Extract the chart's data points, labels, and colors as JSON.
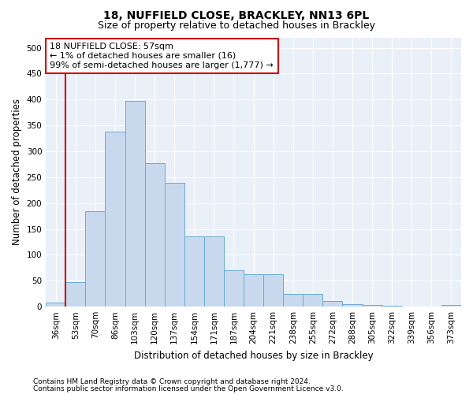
{
  "title1": "18, NUFFIELD CLOSE, BRACKLEY, NN13 6PL",
  "title2": "Size of property relative to detached houses in Brackley",
  "xlabel": "Distribution of detached houses by size in Brackley",
  "ylabel": "Number of detached properties",
  "categories": [
    "36sqm",
    "53sqm",
    "70sqm",
    "86sqm",
    "103sqm",
    "120sqm",
    "137sqm",
    "154sqm",
    "171sqm",
    "187sqm",
    "204sqm",
    "221sqm",
    "238sqm",
    "255sqm",
    "272sqm",
    "288sqm",
    "305sqm",
    "322sqm",
    "339sqm",
    "356sqm",
    "373sqm"
  ],
  "bar_heights": [
    8,
    47,
    184,
    338,
    397,
    277,
    239,
    135,
    135,
    70,
    62,
    62,
    25,
    25,
    11,
    5,
    3,
    2,
    1,
    1,
    3
  ],
  "bar_color": "#c8d9ee",
  "bar_edge_color": "#6aaad4",
  "vline_color": "#cc0000",
  "annotation_text": "18 NUFFIELD CLOSE: 57sqm\n← 1% of detached houses are smaller (16)\n99% of semi-detached houses are larger (1,777) →",
  "annotation_box_color": "#ffffff",
  "annotation_box_edge_color": "#cc0000",
  "footer1": "Contains HM Land Registry data © Crown copyright and database right 2024.",
  "footer2": "Contains public sector information licensed under the Open Government Licence v3.0.",
  "ylim": [
    0,
    520
  ],
  "yticks": [
    0,
    50,
    100,
    150,
    200,
    250,
    300,
    350,
    400,
    450,
    500
  ],
  "bg_color": "#eaf0f8",
  "grid_color": "#ffffff",
  "title_fontsize": 10,
  "subtitle_fontsize": 9,
  "axis_label_fontsize": 8.5,
  "tick_fontsize": 7.5,
  "annotation_fontsize": 8,
  "footer_fontsize": 6.5
}
